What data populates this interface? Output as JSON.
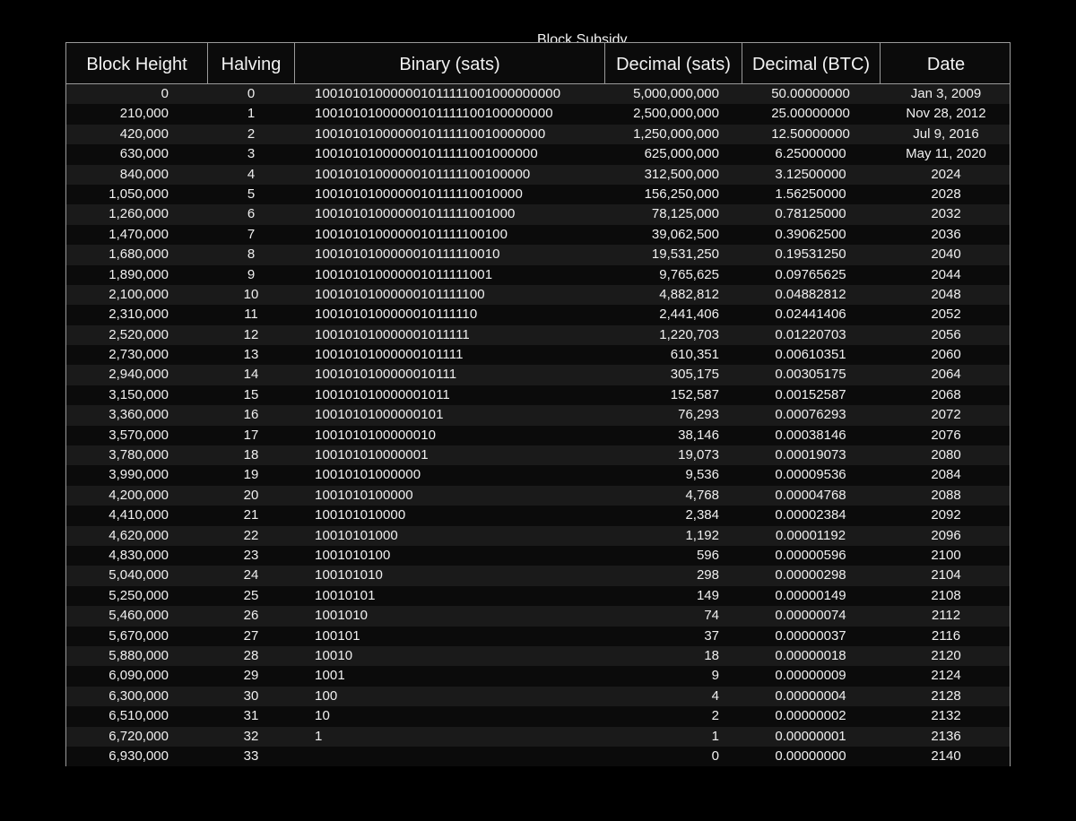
{
  "table": {
    "group_label": "Block Subsidy",
    "headers": {
      "block_height": "Block Height",
      "halving": "Halving",
      "binary": "Binary (sats)",
      "decimal_sats": "Decimal (sats)",
      "decimal_btc": "Decimal (BTC)",
      "date": "Date"
    },
    "rows": [
      {
        "height": "0",
        "halving": "0",
        "binary": "100101010000001011111001000000000",
        "sats": "5,000,000,000",
        "btc": "50.00000000",
        "date": "Jan 3, 2009"
      },
      {
        "height": "210,000",
        "halving": "1",
        "binary": "10010101000000101111100100000000",
        "sats": "2,500,000,000",
        "btc": "25.00000000",
        "date": "Nov 28, 2012"
      },
      {
        "height": "420,000",
        "halving": "2",
        "binary": "1001010100000010111110010000000",
        "sats": "1,250,000,000",
        "btc": "12.50000000",
        "date": "Jul 9, 2016"
      },
      {
        "height": "630,000",
        "halving": "3",
        "binary": "100101010000001011111001000000",
        "sats": "625,000,000",
        "btc": "6.25000000",
        "date": "May 11, 2020"
      },
      {
        "height": "840,000",
        "halving": "4",
        "binary": "10010101000000101111100100000",
        "sats": "312,500,000",
        "btc": "3.12500000",
        "date": "2024"
      },
      {
        "height": "1,050,000",
        "halving": "5",
        "binary": "1001010100000010111110010000",
        "sats": "156,250,000",
        "btc": "1.56250000",
        "date": "2028"
      },
      {
        "height": "1,260,000",
        "halving": "6",
        "binary": "100101010000001011111001000",
        "sats": "78,125,000",
        "btc": "0.78125000",
        "date": "2032"
      },
      {
        "height": "1,470,000",
        "halving": "7",
        "binary": "10010101000000101111100100",
        "sats": "39,062,500",
        "btc": "0.39062500",
        "date": "2036"
      },
      {
        "height": "1,680,000",
        "halving": "8",
        "binary": "1001010100000010111110010",
        "sats": "19,531,250",
        "btc": "0.19531250",
        "date": "2040"
      },
      {
        "height": "1,890,000",
        "halving": "9",
        "binary": "100101010000001011111001",
        "sats": "9,765,625",
        "btc": "0.09765625",
        "date": "2044"
      },
      {
        "height": "2,100,000",
        "halving": "10",
        "binary": "10010101000000101111100",
        "sats": "4,882,812",
        "btc": "0.04882812",
        "date": "2048"
      },
      {
        "height": "2,310,000",
        "halving": "11",
        "binary": "1001010100000010111110",
        "sats": "2,441,406",
        "btc": "0.02441406",
        "date": "2052"
      },
      {
        "height": "2,520,000",
        "halving": "12",
        "binary": "100101010000001011111",
        "sats": "1,220,703",
        "btc": "0.01220703",
        "date": "2056"
      },
      {
        "height": "2,730,000",
        "halving": "13",
        "binary": "10010101000000101111",
        "sats": "610,351",
        "btc": "0.00610351",
        "date": "2060"
      },
      {
        "height": "2,940,000",
        "halving": "14",
        "binary": "1001010100000010111",
        "sats": "305,175",
        "btc": "0.00305175",
        "date": "2064"
      },
      {
        "height": "3,150,000",
        "halving": "15",
        "binary": "100101010000001011",
        "sats": "152,587",
        "btc": "0.00152587",
        "date": "2068"
      },
      {
        "height": "3,360,000",
        "halving": "16",
        "binary": "10010101000000101",
        "sats": "76,293",
        "btc": "0.00076293",
        "date": "2072"
      },
      {
        "height": "3,570,000",
        "halving": "17",
        "binary": "1001010100000010",
        "sats": "38,146",
        "btc": "0.00038146",
        "date": "2076"
      },
      {
        "height": "3,780,000",
        "halving": "18",
        "binary": "100101010000001",
        "sats": "19,073",
        "btc": "0.00019073",
        "date": "2080"
      },
      {
        "height": "3,990,000",
        "halving": "19",
        "binary": "10010101000000",
        "sats": "9,536",
        "btc": "0.00009536",
        "date": "2084"
      },
      {
        "height": "4,200,000",
        "halving": "20",
        "binary": "1001010100000",
        "sats": "4,768",
        "btc": "0.00004768",
        "date": "2088"
      },
      {
        "height": "4,410,000",
        "halving": "21",
        "binary": "100101010000",
        "sats": "2,384",
        "btc": "0.00002384",
        "date": "2092"
      },
      {
        "height": "4,620,000",
        "halving": "22",
        "binary": "10010101000",
        "sats": "1,192",
        "btc": "0.00001192",
        "date": "2096"
      },
      {
        "height": "4,830,000",
        "halving": "23",
        "binary": "1001010100",
        "sats": "596",
        "btc": "0.00000596",
        "date": "2100"
      },
      {
        "height": "5,040,000",
        "halving": "24",
        "binary": "100101010",
        "sats": "298",
        "btc": "0.00000298",
        "date": "2104"
      },
      {
        "height": "5,250,000",
        "halving": "25",
        "binary": "10010101",
        "sats": "149",
        "btc": "0.00000149",
        "date": "2108"
      },
      {
        "height": "5,460,000",
        "halving": "26",
        "binary": "1001010",
        "sats": "74",
        "btc": "0.00000074",
        "date": "2112"
      },
      {
        "height": "5,670,000",
        "halving": "27",
        "binary": "100101",
        "sats": "37",
        "btc": "0.00000037",
        "date": "2116"
      },
      {
        "height": "5,880,000",
        "halving": "28",
        "binary": "10010",
        "sats": "18",
        "btc": "0.00000018",
        "date": "2120"
      },
      {
        "height": "6,090,000",
        "halving": "29",
        "binary": "1001",
        "sats": "9",
        "btc": "0.00000009",
        "date": "2124"
      },
      {
        "height": "6,300,000",
        "halving": "30",
        "binary": "100",
        "sats": "4",
        "btc": "0.00000004",
        "date": "2128"
      },
      {
        "height": "6,510,000",
        "halving": "31",
        "binary": "10",
        "sats": "2",
        "btc": "0.00000002",
        "date": "2132"
      },
      {
        "height": "6,720,000",
        "halving": "32",
        "binary": "1",
        "sats": "1",
        "btc": "0.00000001",
        "date": "2136"
      },
      {
        "height": "6,930,000",
        "halving": "33",
        "binary": "",
        "sats": "0",
        "btc": "0.00000000",
        "date": "2140"
      }
    ]
  },
  "colors": {
    "background": "#000000",
    "panel": "#0b0b0b",
    "row_stripe": "#1a1a1a",
    "grid_line": "#9a9a9a",
    "text": "#f2f2f2"
  }
}
